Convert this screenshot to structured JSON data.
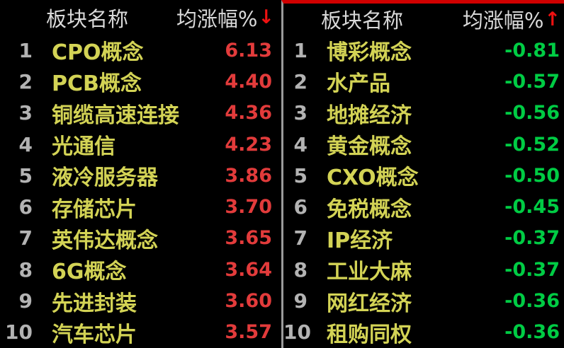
{
  "colors": {
    "background": "#000000",
    "header_text": "#d9d9d9",
    "rank_text": "#b3b3b3",
    "sector_name": "#d3d355",
    "gain_value": "#e23b3b",
    "loss_value": "#00cc44",
    "sort_arrow": "#ee1111",
    "divider": "#9a9a9a",
    "right_panel_top_border": "#d00000"
  },
  "panels": [
    {
      "name": "top-gainers",
      "header": {
        "sector_col": "板块名称",
        "change_col": "均涨幅%",
        "sort_arrow_glyph": "↓"
      },
      "rows": [
        {
          "rank": "1",
          "name": "CPO概念",
          "value": "6.13"
        },
        {
          "rank": "2",
          "name": "PCB概念",
          "value": "4.40"
        },
        {
          "rank": "3",
          "name": "铜缆高速连接",
          "value": "4.36"
        },
        {
          "rank": "4",
          "name": "光通信",
          "value": "4.23"
        },
        {
          "rank": "5",
          "name": "液冷服务器",
          "value": "3.86"
        },
        {
          "rank": "6",
          "name": "存储芯片",
          "value": "3.70"
        },
        {
          "rank": "7",
          "name": "英伟达概念",
          "value": "3.65"
        },
        {
          "rank": "8",
          "name": "6G概念",
          "value": "3.64"
        },
        {
          "rank": "9",
          "name": "先进封装",
          "value": "3.60"
        },
        {
          "rank": "10",
          "name": "汽车芯片",
          "value": "3.57"
        }
      ]
    },
    {
      "name": "top-losers",
      "header": {
        "sector_col": "板块名称",
        "change_col": "均涨幅%",
        "sort_arrow_glyph": "↑"
      },
      "rows": [
        {
          "rank": "1",
          "name": "博彩概念",
          "value": "-0.81"
        },
        {
          "rank": "2",
          "name": "水产品",
          "value": "-0.57"
        },
        {
          "rank": "3",
          "name": "地摊经济",
          "value": "-0.56"
        },
        {
          "rank": "4",
          "name": "黄金概念",
          "value": "-0.52"
        },
        {
          "rank": "5",
          "name": "CXO概念",
          "value": "-0.50"
        },
        {
          "rank": "6",
          "name": "免税概念",
          "value": "-0.45"
        },
        {
          "rank": "7",
          "name": "IP经济",
          "value": "-0.37"
        },
        {
          "rank": "8",
          "name": "工业大麻",
          "value": "-0.37"
        },
        {
          "rank": "9",
          "name": "网红经济",
          "value": "-0.36"
        },
        {
          "rank": "10",
          "name": "租购同权",
          "value": "-0.36"
        }
      ]
    }
  ]
}
